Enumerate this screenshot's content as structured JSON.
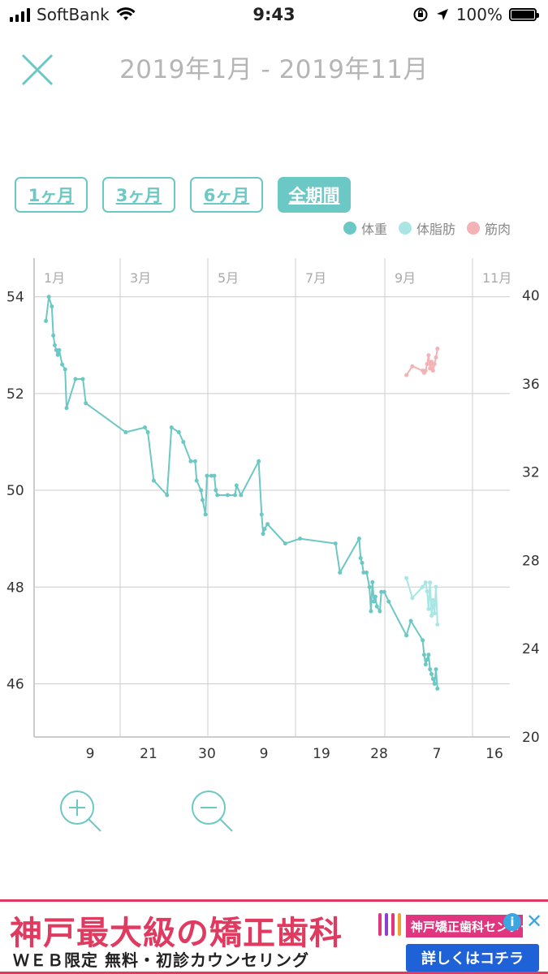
{
  "status_bar": {
    "carrier": "SoftBank",
    "time": "9:43",
    "battery": "100%"
  },
  "header": {
    "title": "2019年1月 - 2019年11月"
  },
  "range_buttons": [
    "1ヶ月",
    "3ヶ月",
    "6ヶ月",
    "全期間"
  ],
  "active_range": "全期間",
  "legend": [
    {
      "label": "体重",
      "color": "#6cc8c4"
    },
    {
      "label": "体脂肪",
      "color": "#a9e6e3"
    },
    {
      "label": "筋肉",
      "color": "#f3b3b6"
    }
  ],
  "chart_data": {
    "type": "line",
    "month_labels": [
      "1月",
      "3月",
      "5月",
      "7月",
      "9月",
      "11月"
    ],
    "day_ticks": [
      "9",
      "21",
      "30",
      "9",
      "19",
      "28",
      "7",
      "16"
    ],
    "y_left": {
      "ticks": [
        46,
        48,
        50,
        52,
        54
      ],
      "range": [
        44.9,
        54.8
      ]
    },
    "y_right": {
      "ticks": [
        20,
        24,
        28,
        32,
        36,
        40
      ],
      "range": [
        20,
        41.7
      ]
    },
    "x_range": [
      0,
      322
    ],
    "series": [
      {
        "name": "体重",
        "axis": "left",
        "color": "#6cc8c4",
        "points": [
          [
            8,
            53.5
          ],
          [
            10,
            54.0
          ],
          [
            12,
            53.8
          ],
          [
            13,
            53.2
          ],
          [
            14,
            53.0
          ],
          [
            15,
            52.9
          ],
          [
            16,
            52.8
          ],
          [
            17,
            52.9
          ],
          [
            19,
            52.6
          ],
          [
            21,
            52.5
          ],
          [
            22,
            51.7
          ],
          [
            28,
            52.3
          ],
          [
            33,
            52.3
          ],
          [
            35,
            51.8
          ],
          [
            62,
            51.2
          ],
          [
            75,
            51.3
          ],
          [
            77,
            51.2
          ],
          [
            81,
            50.2
          ],
          [
            90,
            49.9
          ],
          [
            93,
            51.3
          ],
          [
            98,
            51.2
          ],
          [
            101,
            51.0
          ],
          [
            106,
            50.6
          ],
          [
            109,
            50.6
          ],
          [
            110,
            50.2
          ],
          [
            113,
            50.0
          ],
          [
            114,
            49.8
          ],
          [
            116,
            49.5
          ],
          [
            117,
            50.3
          ],
          [
            120,
            50.3
          ],
          [
            122,
            50.3
          ],
          [
            123,
            50.0
          ],
          [
            124,
            49.9
          ],
          [
            131,
            49.9
          ],
          [
            136,
            49.9
          ],
          [
            137,
            50.1
          ],
          [
            140,
            49.9
          ],
          [
            152,
            50.6
          ],
          [
            154,
            49.5
          ],
          [
            155,
            49.1
          ],
          [
            156,
            49.2
          ],
          [
            158,
            49.3
          ],
          [
            170,
            48.9
          ],
          [
            180,
            49.0
          ],
          [
            204,
            48.9
          ],
          [
            207,
            48.3
          ],
          [
            220,
            49.0
          ],
          [
            221,
            48.6
          ],
          [
            222,
            48.5
          ],
          [
            223,
            48.3
          ],
          [
            225,
            48.3
          ],
          [
            227,
            48.0
          ],
          [
            228,
            47.5
          ],
          [
            229,
            48.1
          ],
          [
            230,
            47.7
          ],
          [
            231,
            47.8
          ],
          [
            232,
            47.6
          ],
          [
            234,
            47.5
          ],
          [
            235,
            47.9
          ],
          [
            237,
            47.9
          ],
          [
            240,
            47.7
          ],
          [
            252,
            47.0
          ],
          [
            255,
            47.3
          ],
          [
            263,
            46.9
          ],
          [
            264,
            46.6
          ],
          [
            265,
            46.4
          ],
          [
            266,
            46.5
          ],
          [
            267,
            46.6
          ],
          [
            268,
            46.3
          ],
          [
            269,
            46.2
          ],
          [
            270,
            46.1
          ],
          [
            271,
            46.0
          ],
          [
            272,
            46.3
          ],
          [
            273,
            45.9
          ]
        ]
      },
      {
        "name": "体脂肪",
        "axis": "right",
        "color": "#a9e6e3",
        "points": [
          [
            252,
            27.2
          ],
          [
            256,
            26.3
          ],
          [
            263,
            26.8
          ],
          [
            265,
            27.0
          ],
          [
            266,
            26.6
          ],
          [
            267,
            25.8
          ],
          [
            268,
            27.0
          ],
          [
            269,
            25.5
          ],
          [
            270,
            26.2
          ],
          [
            271,
            25.6
          ],
          [
            272,
            26.8
          ],
          [
            273,
            25.1
          ]
        ]
      },
      {
        "name": "筋肉",
        "axis": "right",
        "color": "#f3b3b6",
        "points": [
          [
            252,
            36.4
          ],
          [
            256,
            36.8
          ],
          [
            263,
            36.6
          ],
          [
            264,
            36.5
          ],
          [
            265,
            36.6
          ],
          [
            266,
            36.9
          ],
          [
            267,
            37.3
          ],
          [
            268,
            36.7
          ],
          [
            269,
            37.0
          ],
          [
            270,
            36.6
          ],
          [
            271,
            36.9
          ],
          [
            272,
            37.2
          ],
          [
            273,
            37.6
          ]
        ]
      }
    ]
  },
  "zoom": {
    "in_icon": "zoom-in-icon",
    "out_icon": "zoom-out-icon"
  },
  "ad": {
    "title": "神戸最大級の矯正歯科",
    "subtitle": "ＷＥＢ限定 無料・初診カウンセリング",
    "logo_text": "神戸矯正歯科センター",
    "info": "i",
    "close": "✕",
    "cta": "詳しくはコチラ"
  }
}
